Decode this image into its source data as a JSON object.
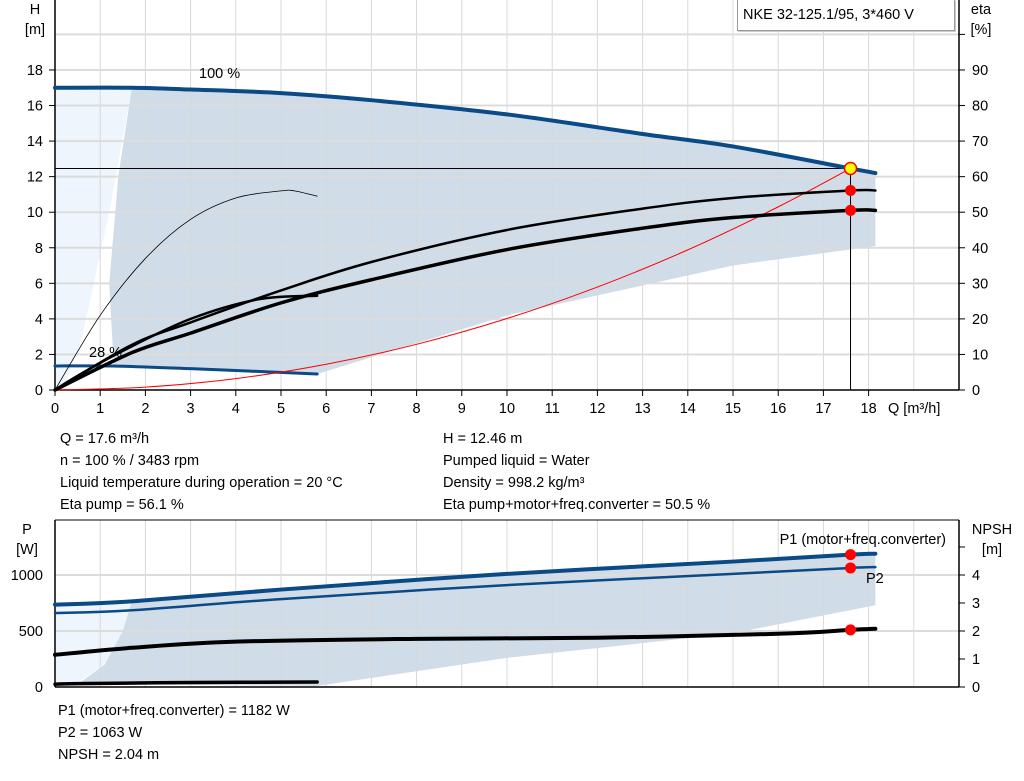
{
  "chart_data": [
    {
      "type": "line",
      "title": "NKE 32-125.1/95, 3*460 V",
      "xlabel": "Q [m³/h]",
      "ylabel": "H\n[m]",
      "y2label": "eta\n[%]",
      "xlim": [
        0,
        20
      ],
      "ylim": [
        0,
        20
      ],
      "y2lim": [
        0,
        100
      ],
      "xticks": [
        0,
        1,
        2,
        3,
        4,
        5,
        6,
        7,
        8,
        9,
        10,
        11,
        12,
        13,
        14,
        15,
        16,
        17,
        18
      ],
      "yticks": [
        0,
        2,
        4,
        6,
        8,
        10,
        12,
        14,
        16,
        18
      ],
      "y2ticks": [
        0,
        10,
        20,
        30,
        40,
        50,
        60,
        70,
        80,
        90
      ],
      "grid": true,
      "curve_labels": [
        "100 %",
        "28 %"
      ],
      "series": [
        {
          "name": "100 %",
          "axis": "H",
          "color": "#0a4a86",
          "x": [
            0,
            1.7,
            3,
            5,
            7,
            10,
            13,
            15,
            17.6,
            18.15
          ],
          "y": [
            17.0,
            17.0,
            16.9,
            16.7,
            16.3,
            15.5,
            14.4,
            13.7,
            12.46,
            12.2
          ]
        },
        {
          "name": "28 %",
          "axis": "H",
          "color": "#0a4a86",
          "x": [
            0,
            1.3,
            3,
            5.8
          ],
          "y": [
            1.35,
            1.35,
            1.2,
            0.9
          ]
        },
        {
          "axis": "H",
          "color": "#ff0000",
          "x": [
            0,
            2,
            4,
            6,
            8,
            10,
            12,
            14,
            16,
            17.6
          ],
          "y": [
            0,
            0.16,
            0.64,
            1.45,
            2.57,
            4.02,
            5.79,
            7.88,
            10.3,
            12.46
          ]
        },
        {
          "axis": "eta",
          "color": "#000000",
          "x": [
            0,
            1.7,
            3,
            5,
            7,
            10,
            13,
            15,
            17.6,
            18.15
          ],
          "y": [
            0,
            12.7,
            19,
            28,
            36,
            45,
            51,
            54,
            56.1,
            56.1
          ]
        },
        {
          "axis": "eta",
          "color": "#000000",
          "x": [
            0,
            1.7,
            3,
            5,
            7,
            10,
            13,
            15,
            17.6,
            18.15
          ],
          "y": [
            0,
            10.5,
            16,
            24.5,
            31,
            39.5,
            45.5,
            48.5,
            50.5,
            50.5
          ]
        },
        {
          "axis": "eta",
          "color": "#000000",
          "x": [
            0,
            1,
            2,
            3,
            4,
            5,
            5.3,
            5.8
          ],
          "y": [
            0,
            21,
            37,
            48,
            54,
            56,
            56,
            54.5
          ]
        },
        {
          "axis": "eta",
          "color": "#000000",
          "x": [
            0,
            0.5,
            1.5,
            3,
            4.5,
            5.8
          ],
          "y": [
            0,
            4,
            11,
            20,
            25.5,
            26.5
          ]
        }
      ],
      "operating_point": {
        "Q": 17.6,
        "H": 12.46,
        "eta_pump": 56.1,
        "eta_total": 50.5
      }
    },
    {
      "type": "line",
      "ylabel": "P\n[W]",
      "y2label": "NPSH\n[m]",
      "xlim": [
        0,
        20
      ],
      "ylim": [
        0,
        1500
      ],
      "y2lim": [
        0,
        6
      ],
      "yticks": [
        0,
        500,
        1000
      ],
      "y2ticks": [
        0,
        1,
        2,
        3,
        4
      ],
      "grid": true,
      "series": [
        {
          "name": "P1 (motor+freq.converter)",
          "axis": "P",
          "color": "#0a4a86",
          "x": [
            0,
            1.7,
            5,
            10,
            15,
            17.6,
            18.15
          ],
          "y": [
            735,
            765,
            870,
            1010,
            1120,
            1182,
            1190
          ]
        },
        {
          "name": "P2",
          "axis": "P",
          "color": "#0a4a86",
          "x": [
            0,
            1.7,
            5,
            10,
            15,
            17.6,
            18.15
          ],
          "y": [
            660,
            685,
            785,
            910,
            1010,
            1063,
            1070
          ]
        },
        {
          "axis": "NPSH",
          "color": "#000000",
          "x": [
            0,
            1.7,
            4,
            8,
            12,
            16,
            17.6,
            18.15
          ],
          "y": [
            1.15,
            1.4,
            1.62,
            1.72,
            1.76,
            1.9,
            2.04,
            2.08
          ]
        },
        {
          "axis": "P",
          "color": "#000000",
          "x": [
            0,
            0.5,
            3,
            5.8
          ],
          "y": [
            25,
            30,
            40,
            45
          ]
        }
      ],
      "operating_point": {
        "P1": 1182,
        "P2": 1063,
        "NPSH": 2.04
      }
    }
  ],
  "info_top_left": [
    "Q = 17.6 m³/h",
    "n = 100 % / 3483 rpm",
    "Liquid temperature during operation = 20 °C",
    "Eta pump = 56.1 %"
  ],
  "info_top_right": [
    "H = 12.46 m",
    "Pumped liquid = Water",
    "Density = 998.2 kg/m³",
    "Eta pump+motor+freq.converter = 50.5 %"
  ],
  "info_bottom": [
    "P1 (motor+freq.converter) = 1182 W",
    "P2 = 1063 W",
    "NPSH = 2.04 m"
  ]
}
